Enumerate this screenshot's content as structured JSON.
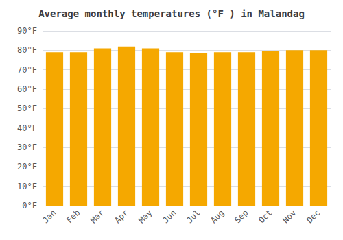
{
  "chart_data": {
    "type": "bar",
    "title": "Average monthly temperatures (°F ) in Malandag",
    "categories": [
      "Jan",
      "Feb",
      "Mar",
      "Apr",
      "May",
      "Jun",
      "Jul",
      "Aug",
      "Sep",
      "Oct",
      "Nov",
      "Dec"
    ],
    "values": [
      79,
      79,
      81,
      82,
      81,
      79,
      78.5,
      79,
      79,
      79.5,
      80,
      80
    ],
    "color": "#F5A800",
    "ylim": [
      0,
      90
    ],
    "yticks": [
      {
        "value": 0,
        "label": "0°F"
      },
      {
        "value": 10,
        "label": "10°F"
      },
      {
        "value": 20,
        "label": "20°F"
      },
      {
        "value": 30,
        "label": "30°F"
      },
      {
        "value": 40,
        "label": "40°F"
      },
      {
        "value": 50,
        "label": "50°F"
      },
      {
        "value": 60,
        "label": "60°F"
      },
      {
        "value": 70,
        "label": "70°F"
      },
      {
        "value": 80,
        "label": "80°F"
      },
      {
        "value": 90,
        "label": "90°F"
      }
    ],
    "grid": true
  }
}
